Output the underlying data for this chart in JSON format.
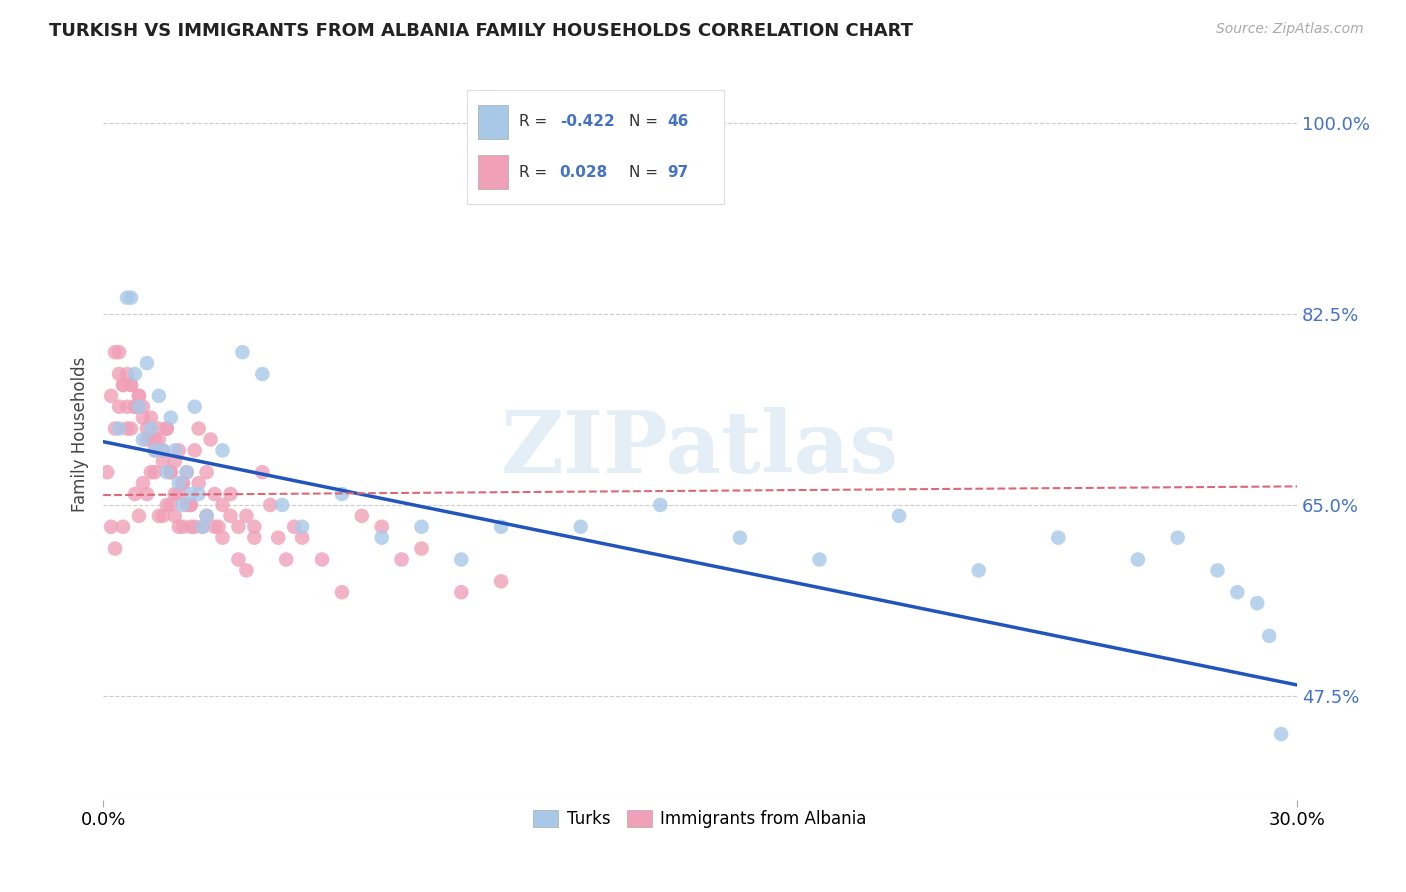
{
  "title": "TURKISH VS IMMIGRANTS FROM ALBANIA FAMILY HOUSEHOLDS CORRELATION CHART",
  "source": "Source: ZipAtlas.com",
  "ylabel": "Family Households",
  "ytick_labels": [
    "47.5%",
    "65.0%",
    "82.5%",
    "100.0%"
  ],
  "ytick_values": [
    0.475,
    0.65,
    0.825,
    1.0
  ],
  "xlim": [
    0.0,
    0.3
  ],
  "ylim": [
    0.38,
    1.05
  ],
  "grid_color": "#cccccc",
  "turks_color": "#a8c8e8",
  "albania_color": "#f0a0b8",
  "turks_line_color": "#2255bb",
  "albania_line_color": "#dd6677",
  "background_color": "#ffffff",
  "watermark": "ZIPatlas",
  "turks_x": [
    0.004,
    0.006,
    0.007,
    0.008,
    0.009,
    0.01,
    0.011,
    0.012,
    0.013,
    0.014,
    0.015,
    0.016,
    0.017,
    0.018,
    0.019,
    0.02,
    0.021,
    0.022,
    0.023,
    0.024,
    0.025,
    0.026,
    0.03,
    0.035,
    0.04,
    0.045,
    0.05,
    0.06,
    0.07,
    0.08,
    0.09,
    0.1,
    0.12,
    0.14,
    0.16,
    0.18,
    0.2,
    0.22,
    0.24,
    0.26,
    0.27,
    0.28,
    0.285,
    0.29,
    0.293,
    0.296
  ],
  "turks_y": [
    0.72,
    0.84,
    0.84,
    0.77,
    0.74,
    0.71,
    0.78,
    0.72,
    0.7,
    0.75,
    0.7,
    0.68,
    0.73,
    0.7,
    0.67,
    0.65,
    0.68,
    0.66,
    0.74,
    0.66,
    0.63,
    0.64,
    0.7,
    0.79,
    0.77,
    0.65,
    0.63,
    0.66,
    0.62,
    0.63,
    0.6,
    0.63,
    0.63,
    0.65,
    0.62,
    0.6,
    0.64,
    0.59,
    0.62,
    0.6,
    0.62,
    0.59,
    0.57,
    0.56,
    0.53,
    0.44
  ],
  "albania_x": [
    0.001,
    0.002,
    0.002,
    0.003,
    0.003,
    0.004,
    0.004,
    0.005,
    0.005,
    0.006,
    0.006,
    0.007,
    0.007,
    0.008,
    0.008,
    0.009,
    0.009,
    0.01,
    0.01,
    0.011,
    0.011,
    0.012,
    0.012,
    0.013,
    0.013,
    0.014,
    0.014,
    0.015,
    0.015,
    0.016,
    0.016,
    0.017,
    0.017,
    0.018,
    0.018,
    0.019,
    0.019,
    0.02,
    0.02,
    0.021,
    0.021,
    0.022,
    0.022,
    0.023,
    0.023,
    0.024,
    0.025,
    0.026,
    0.027,
    0.028,
    0.029,
    0.03,
    0.032,
    0.034,
    0.036,
    0.038,
    0.04,
    0.042,
    0.044,
    0.046,
    0.048,
    0.05,
    0.055,
    0.06,
    0.065,
    0.07,
    0.075,
    0.08,
    0.09,
    0.1,
    0.003,
    0.004,
    0.005,
    0.006,
    0.007,
    0.008,
    0.009,
    0.01,
    0.011,
    0.012,
    0.013,
    0.014,
    0.015,
    0.016,
    0.017,
    0.018,
    0.019,
    0.02,
    0.022,
    0.024,
    0.026,
    0.028,
    0.03,
    0.032,
    0.034,
    0.036,
    0.038
  ],
  "albania_y": [
    0.68,
    0.63,
    0.75,
    0.61,
    0.72,
    0.74,
    0.79,
    0.76,
    0.63,
    0.72,
    0.77,
    0.72,
    0.76,
    0.66,
    0.74,
    0.75,
    0.64,
    0.67,
    0.74,
    0.71,
    0.66,
    0.73,
    0.68,
    0.68,
    0.71,
    0.64,
    0.71,
    0.69,
    0.64,
    0.72,
    0.65,
    0.65,
    0.68,
    0.64,
    0.66,
    0.63,
    0.66,
    0.63,
    0.67,
    0.65,
    0.68,
    0.65,
    0.63,
    0.7,
    0.63,
    0.72,
    0.63,
    0.68,
    0.71,
    0.66,
    0.63,
    0.65,
    0.66,
    0.63,
    0.64,
    0.62,
    0.68,
    0.65,
    0.62,
    0.6,
    0.63,
    0.62,
    0.6,
    0.57,
    0.64,
    0.63,
    0.6,
    0.61,
    0.57,
    0.58,
    0.79,
    0.77,
    0.76,
    0.74,
    0.76,
    0.74,
    0.75,
    0.73,
    0.72,
    0.71,
    0.7,
    0.72,
    0.7,
    0.72,
    0.68,
    0.69,
    0.7,
    0.67,
    0.65,
    0.67,
    0.64,
    0.63,
    0.62,
    0.64,
    0.6,
    0.59,
    0.63
  ],
  "turks_line_x": [
    0.0,
    0.3
  ],
  "turks_line_y": [
    0.708,
    0.485
  ],
  "albania_line_x": [
    0.0,
    0.3
  ],
  "albania_line_y": [
    0.659,
    0.667
  ]
}
